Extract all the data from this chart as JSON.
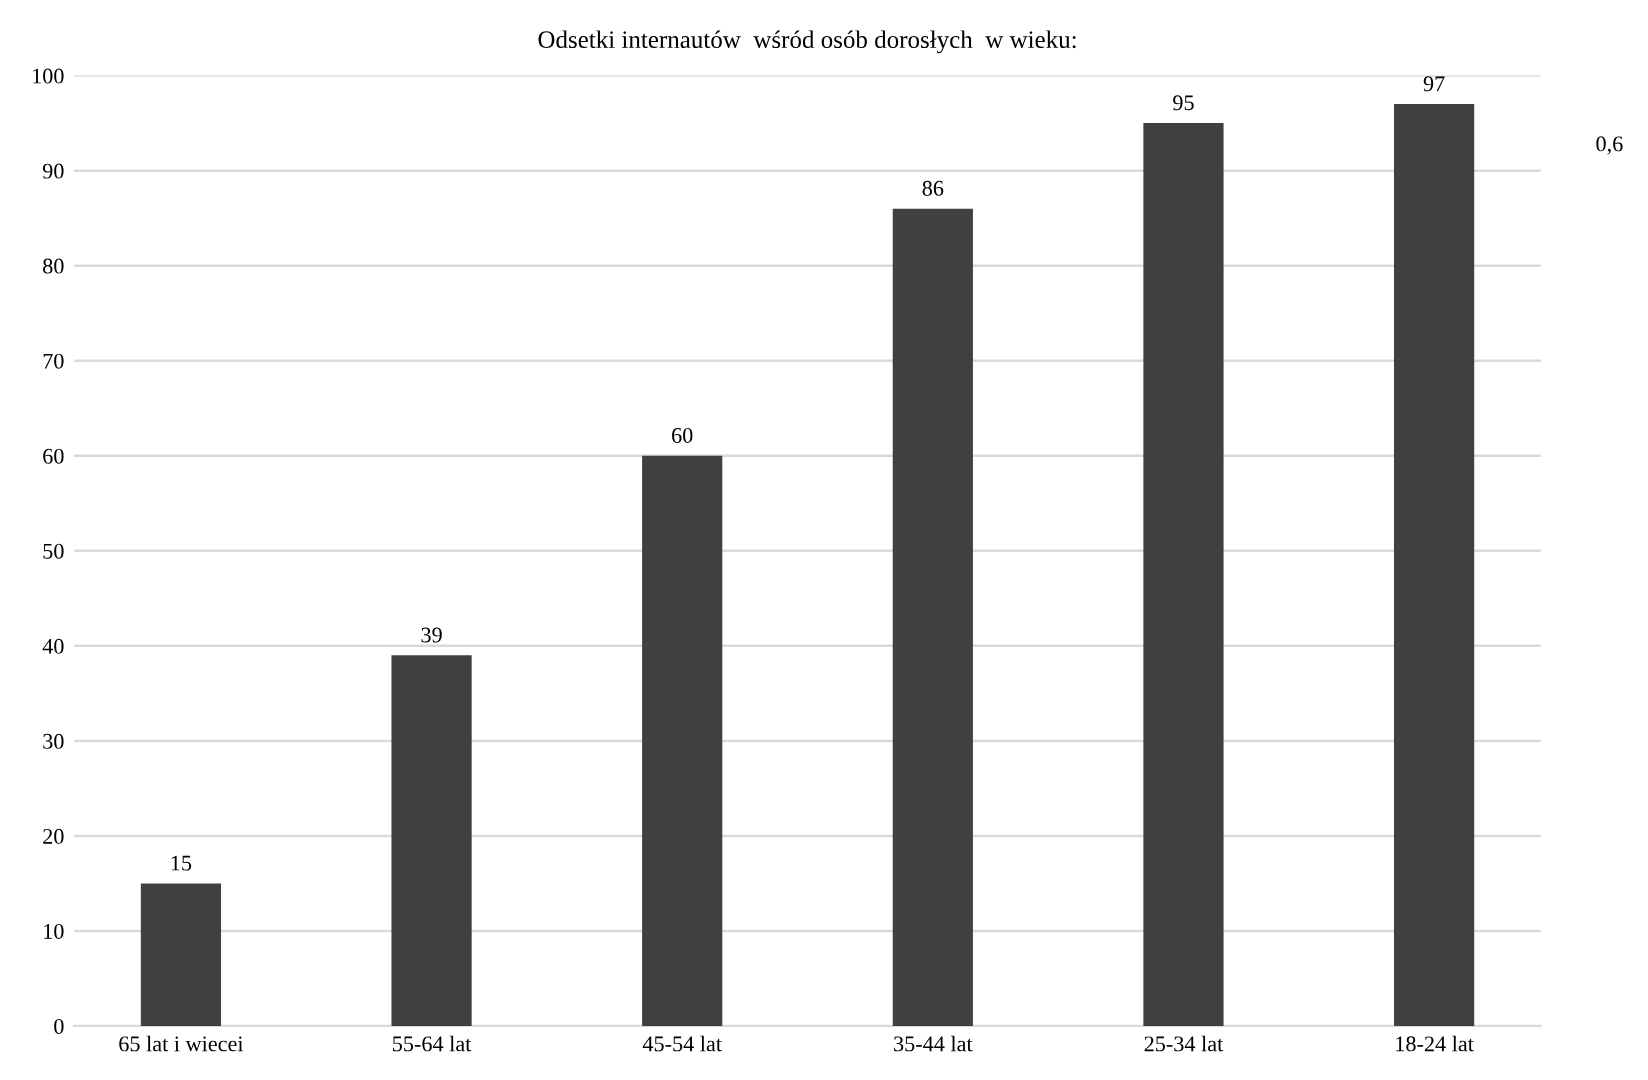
{
  "chart_data": {
    "type": "bar",
    "title": "Odsetki internautów  wśród osób dorosłych  w wieku:",
    "categories": [
      "65 lat i wiecei",
      "55-64 lat",
      "45-54 lat",
      "35-44 lat",
      "25-34 lat",
      "18-24 lat"
    ],
    "values": [
      15,
      39,
      60,
      86,
      95,
      97
    ],
    "color": "#404040",
    "ylim": [
      0,
      100
    ],
    "yticks": [
      0,
      10,
      20,
      30,
      40,
      50,
      60,
      70,
      80,
      90,
      100
    ],
    "grid": "y",
    "data_labels": true,
    "annotations": [
      "0,6"
    ]
  }
}
